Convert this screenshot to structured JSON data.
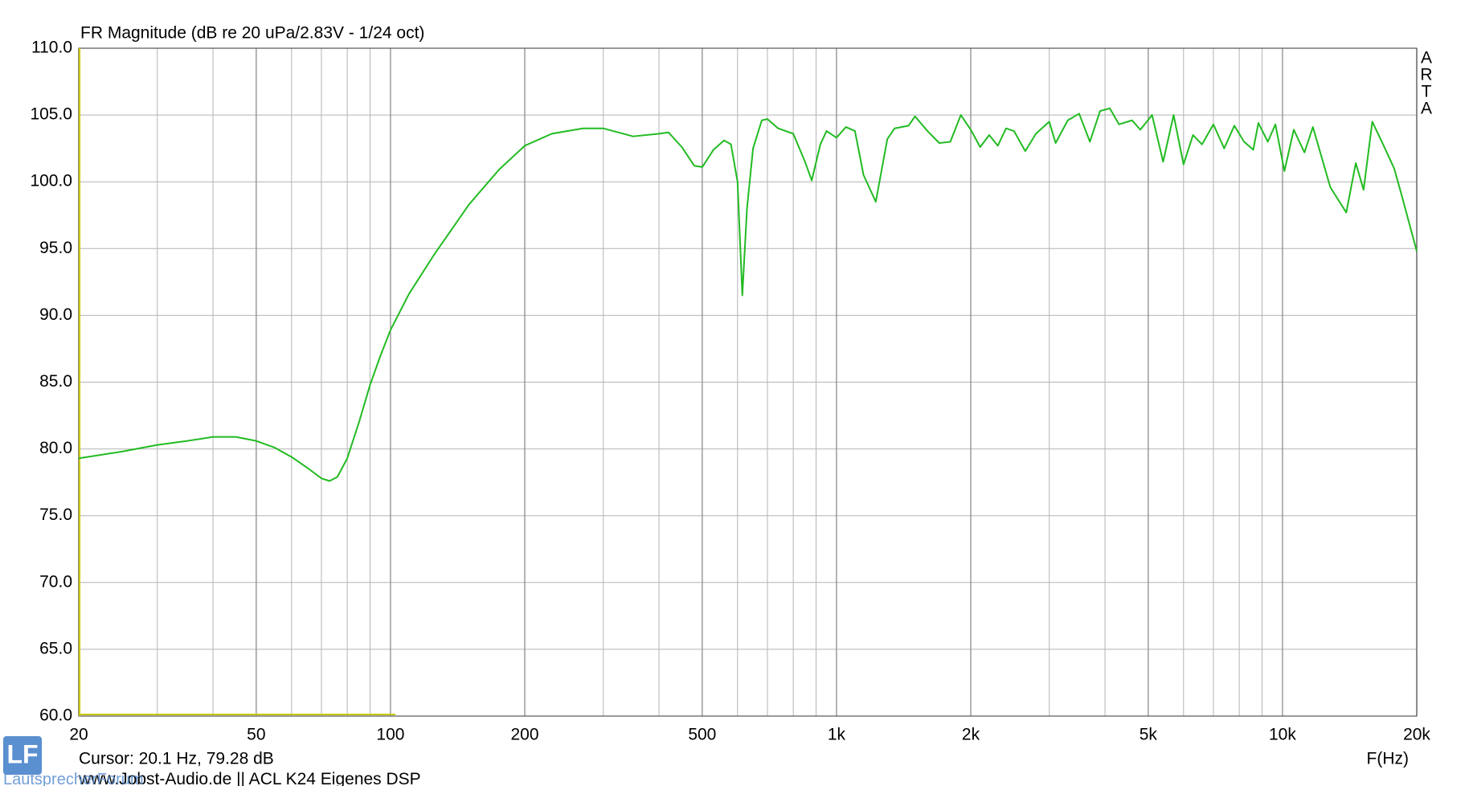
{
  "chart_data": {
    "type": "line",
    "title": "FR Magnitude (dB re 20 uPa/2.83V - 1/24 oct)",
    "x_label": "F(Hz)",
    "side_label": [
      "A",
      "R",
      "T",
      "A"
    ],
    "cursor": "Cursor: 20.1 Hz, 79.28 dB",
    "footer": "www.Jobst-Audio.de  ||  ACL  K24   Eigenes DSP",
    "logo": "LF",
    "logo_text": "LautsprecherForum",
    "xscale": "log",
    "grid": true,
    "xlim": [
      20,
      20000
    ],
    "ylim": [
      60,
      110
    ],
    "xticks": [
      20,
      50,
      100,
      200,
      500,
      {
        "value": 1000,
        "label": "1k"
      },
      {
        "value": 2000,
        "label": "2k"
      },
      {
        "value": 5000,
        "label": "5k"
      },
      {
        "value": 10000,
        "label": "10k"
      },
      {
        "value": 20000,
        "label": "20k"
      }
    ],
    "xminorticks": [
      30,
      40,
      60,
      70,
      80,
      90,
      300,
      400,
      600,
      700,
      800,
      900,
      3000,
      4000,
      6000,
      7000,
      8000,
      9000
    ],
    "yticks": [
      {
        "value": 60,
        "label": "60.0"
      },
      {
        "value": 65,
        "label": "65.0"
      },
      {
        "value": 70,
        "label": "70.0"
      },
      {
        "value": 75,
        "label": "75.0"
      },
      {
        "value": 80,
        "label": "80.0"
      },
      {
        "value": 85,
        "label": "85.0"
      },
      {
        "value": 90,
        "label": "90.0"
      },
      {
        "value": 95,
        "label": "95.0"
      },
      {
        "value": 100,
        "label": "100.0"
      },
      {
        "value": 105,
        "label": "105.0"
      },
      {
        "value": 110,
        "label": "110.0"
      }
    ],
    "x": [
      20,
      25,
      30,
      35,
      40,
      45,
      50,
      55,
      60,
      65,
      70,
      73,
      76,
      80,
      85,
      90,
      95,
      100,
      110,
      125,
      150,
      175,
      200,
      230,
      270,
      300,
      350,
      400,
      420,
      450,
      480,
      500,
      530,
      560,
      580,
      600,
      615,
      630,
      650,
      680,
      700,
      740,
      800,
      850,
      880,
      920,
      950,
      1000,
      1050,
      1100,
      1150,
      1225,
      1300,
      1350,
      1450,
      1500,
      1600,
      1700,
      1800,
      1900,
      2000,
      2100,
      2200,
      2300,
      2400,
      2500,
      2650,
      2800,
      3000,
      3100,
      3300,
      3500,
      3700,
      3900,
      4100,
      4300,
      4600,
      4800,
      5100,
      5400,
      5700,
      6000,
      6300,
      6600,
      7000,
      7400,
      7800,
      8200,
      8600,
      8830,
      9270,
      9640,
      10100,
      10600,
      11200,
      11700,
      12800,
      13900,
      14600,
      15200,
      15900,
      16700,
      17800,
      18500,
      20000
    ],
    "series": [
      {
        "name": "FR",
        "color": "#22bb22",
        "values": [
          79.3,
          79.8,
          80.3,
          80.6,
          80.9,
          80.9,
          80.6,
          80.1,
          79.4,
          78.6,
          77.8,
          77.6,
          77.9,
          79.3,
          82.0,
          84.8,
          87.0,
          88.9,
          91.6,
          94.5,
          98.3,
          100.9,
          102.7,
          103.6,
          104.0,
          104.0,
          103.4,
          103.6,
          103.7,
          102.6,
          101.2,
          101.1,
          102.4,
          103.1,
          102.8,
          100.0,
          91.5,
          98.0,
          102.5,
          104.6,
          104.7,
          104.0,
          103.6,
          101.5,
          100.1,
          102.8,
          103.8,
          103.3,
          104.1,
          103.8,
          100.5,
          98.5,
          103.2,
          104.0,
          104.2,
          104.9,
          103.8,
          102.9,
          103.0,
          105.0,
          103.9,
          102.6,
          103.5,
          102.7,
          104.0,
          103.8,
          102.3,
          103.6,
          104.5,
          102.9,
          104.6,
          105.1,
          103.0,
          105.3,
          105.5,
          104.3,
          104.6,
          103.9,
          105.0,
          101.5,
          105.0,
          101.3,
          103.5,
          102.8,
          104.3,
          102.5,
          104.2,
          103.0,
          102.4,
          104.4,
          103.0,
          104.3,
          100.8,
          103.9,
          102.2,
          104.1,
          99.6,
          97.7,
          101.4,
          99.4,
          104.5,
          103.0,
          101.0,
          99.0,
          94.8
        ]
      }
    ]
  }
}
